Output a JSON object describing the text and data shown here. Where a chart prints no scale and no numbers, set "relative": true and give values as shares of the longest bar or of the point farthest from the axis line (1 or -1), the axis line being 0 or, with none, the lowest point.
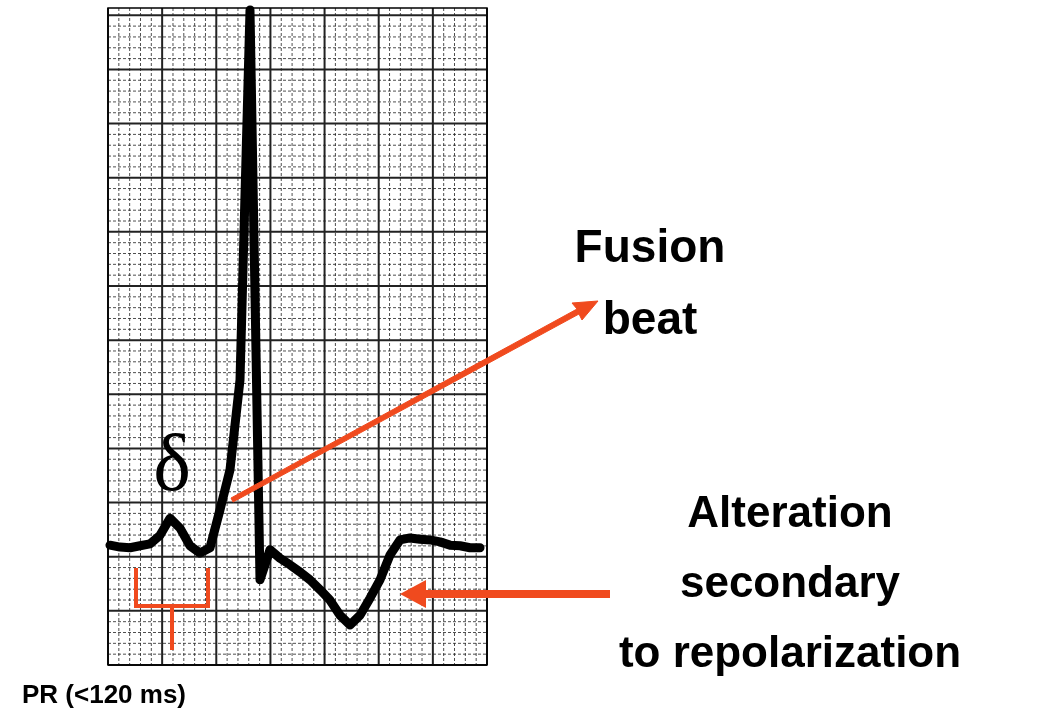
{
  "chart_data": {
    "type": "line",
    "relative": true,
    "grid": true,
    "categories": [
      null,
      null,
      null,
      null,
      null,
      null,
      null,
      null,
      null,
      null,
      null,
      null,
      null,
      null,
      null,
      null,
      null,
      null,
      null,
      null,
      null,
      null,
      null,
      null,
      null,
      null,
      null,
      null,
      null,
      null,
      null,
      null,
      null,
      null,
      null,
      null,
      null,
      null
    ],
    "series": [
      {
        "color": "#000000",
        "values": [
          0.183,
          0.18,
          0.179,
          0.182,
          0.185,
          0.198,
          0.224,
          0.209,
          0.182,
          0.171,
          0.179,
          0.237,
          0.298,
          0.435,
          1,
          0.13,
          0.176,
          0.163,
          0.153,
          0.142,
          0.13,
          0.115,
          0.099,
          0.076,
          0.061,
          0.076,
          0.102,
          0.13,
          0.168,
          0.191,
          0.194,
          0.192,
          0.191,
          0.188,
          0.183,
          0.182,
          0.179,
          0.179
        ]
      }
    ],
    "annotations": [
      "δ",
      "Fusion beat",
      "Alteration secondary to repolarization",
      "PR (<120 ms)"
    ]
  }
}
